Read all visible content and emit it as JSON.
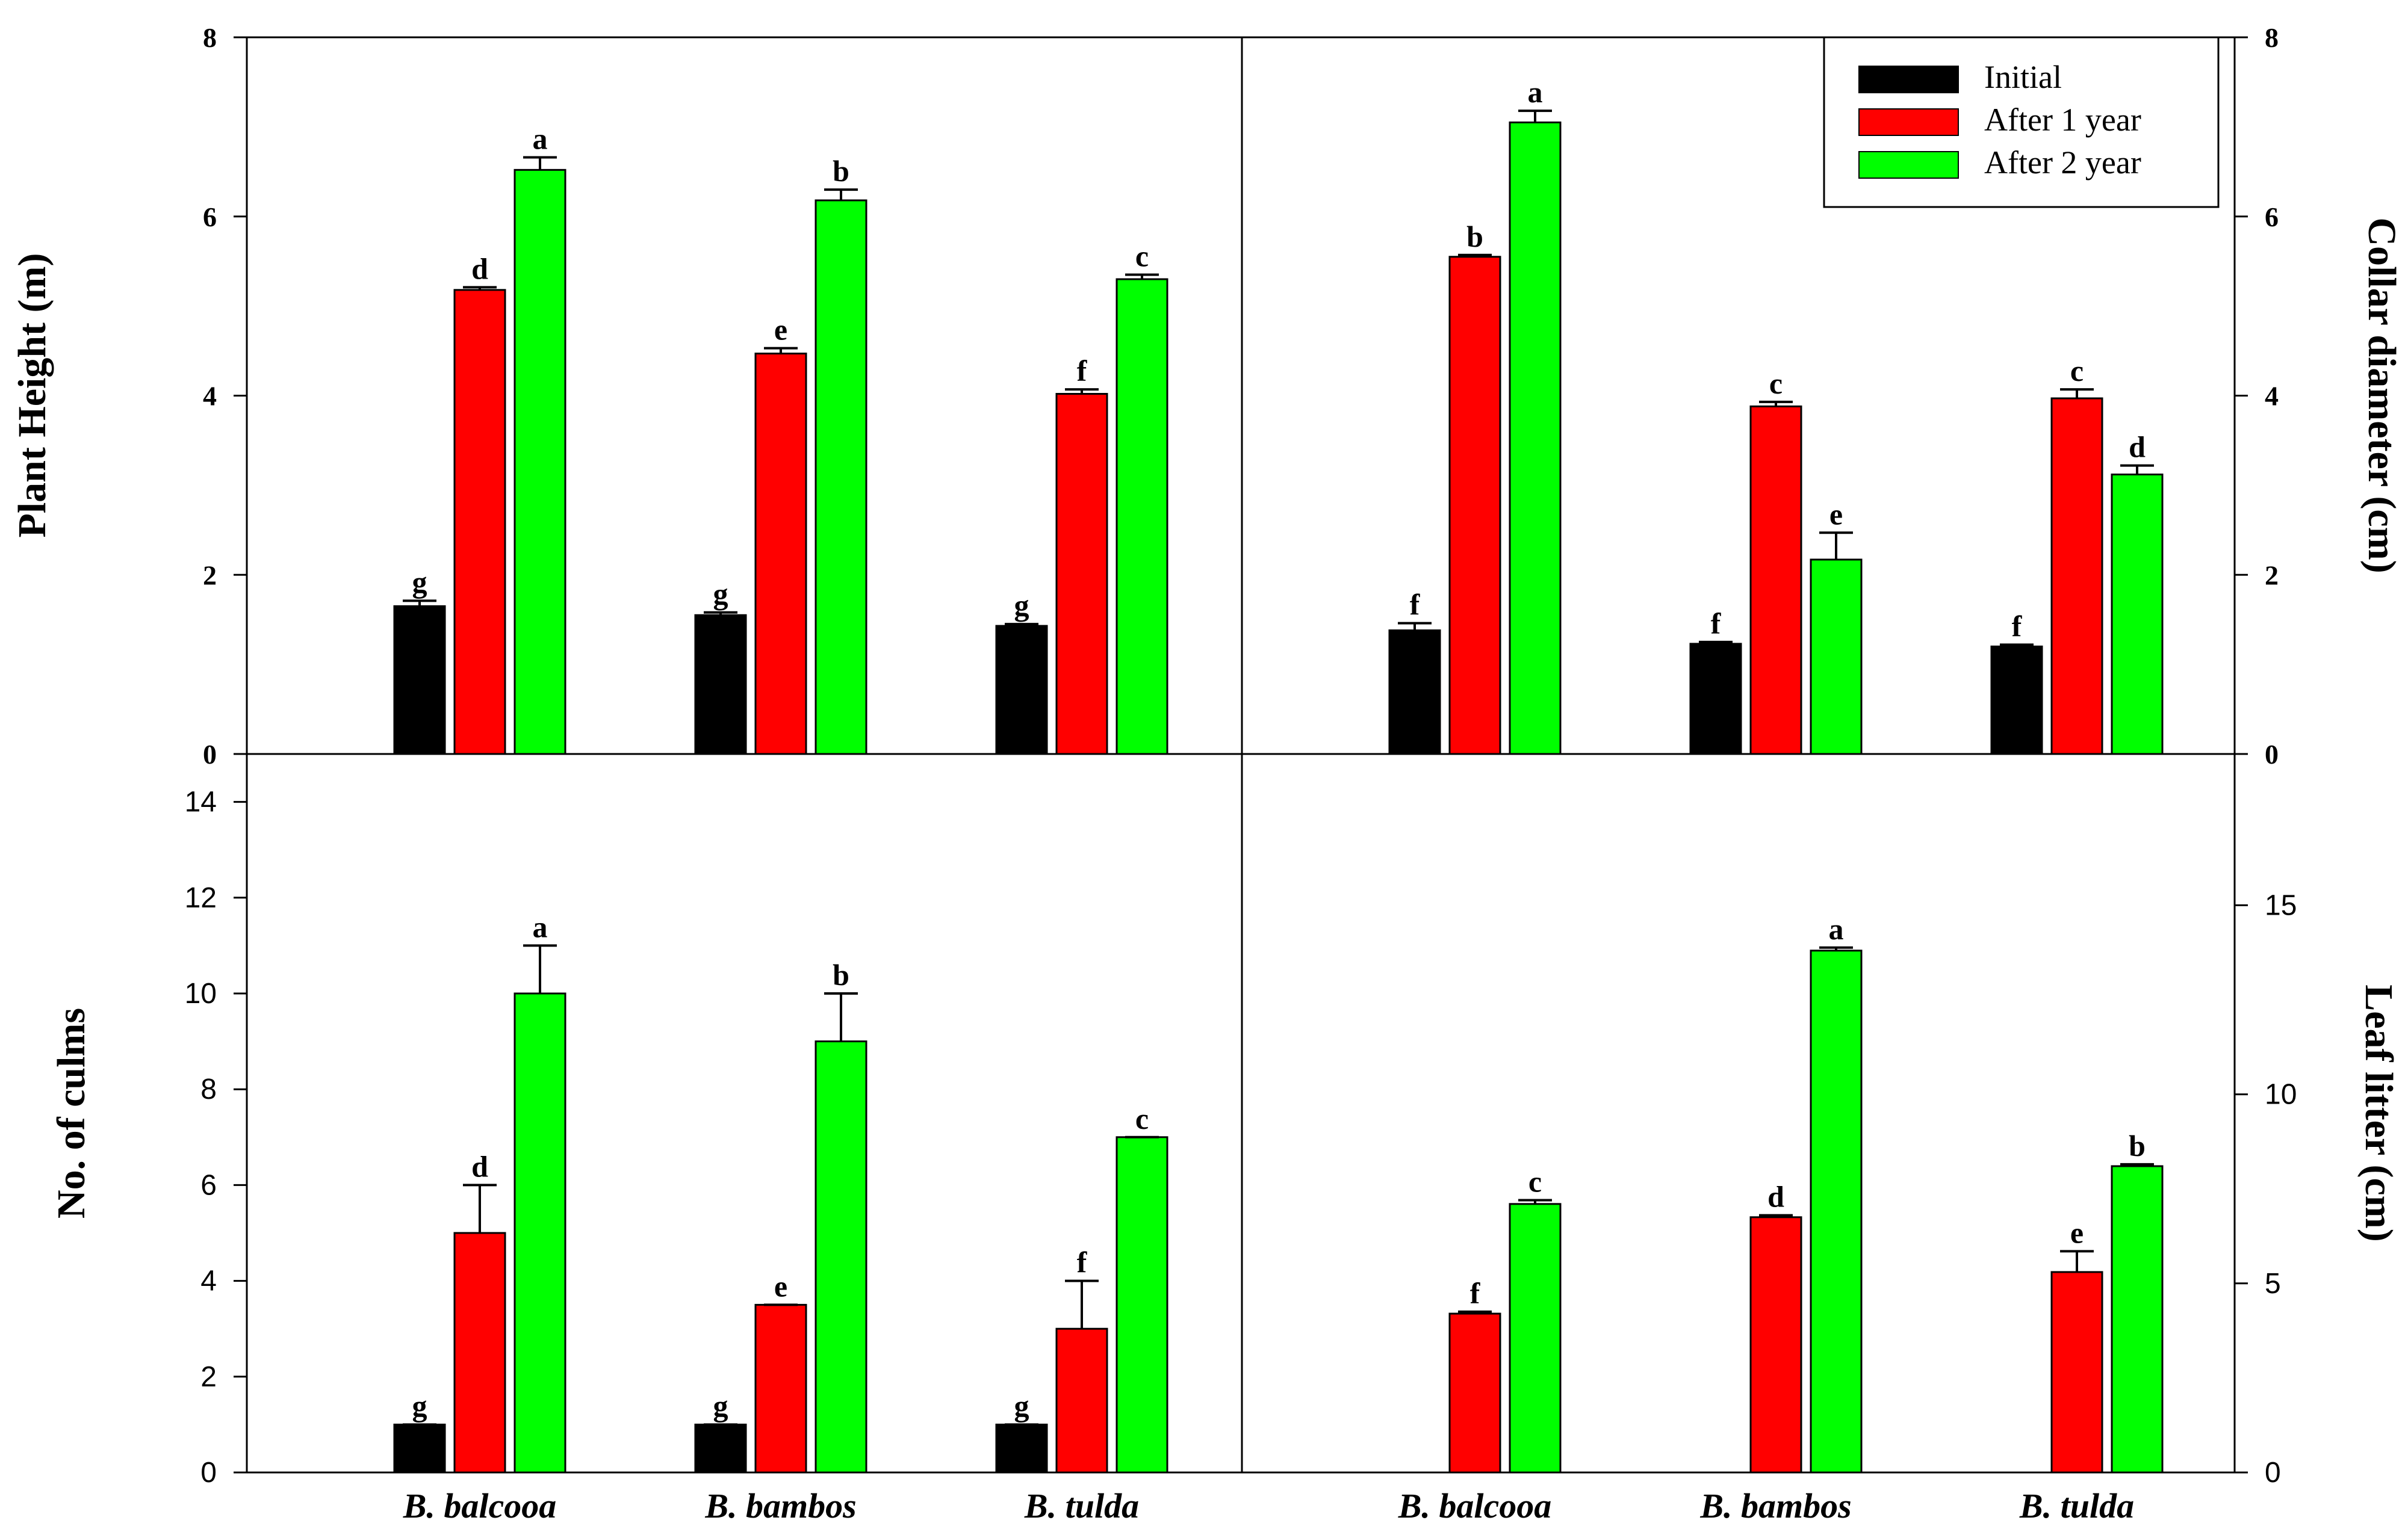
{
  "chart_data": [
    {
      "type": "bar",
      "panel": "top-left",
      "ylabel": "Plant Height (m)",
      "ylim": [
        0,
        8
      ],
      "yticks": [
        "0",
        "2",
        "4",
        "6",
        "8"
      ],
      "categories": [
        "B. balcooa",
        "B. bambos",
        "B. tulda"
      ],
      "series": [
        {
          "name": "Initial",
          "values": [
            1.65,
            1.55,
            1.43
          ],
          "errors": [
            0.06,
            0.03,
            0.02
          ],
          "letters": [
            "g",
            "g",
            "g"
          ]
        },
        {
          "name": "After 1 year",
          "values": [
            5.18,
            4.47,
            4.02
          ],
          "errors": [
            0.03,
            0.06,
            0.05
          ],
          "letters": [
            "d",
            "e",
            "f"
          ]
        },
        {
          "name": "After 2 year",
          "values": [
            6.52,
            6.18,
            5.3
          ],
          "errors": [
            0.14,
            0.12,
            0.05
          ],
          "letters": [
            "a",
            "b",
            "c"
          ]
        }
      ]
    },
    {
      "type": "bar",
      "panel": "top-right",
      "ylabel": "Collar diameter (cm)",
      "ylim": [
        0,
        8
      ],
      "yticks": [
        "0",
        "2",
        "4",
        "6",
        "8"
      ],
      "categories": [
        "B. balcooa",
        "B. bambos",
        "B. tulda"
      ],
      "series": [
        {
          "name": "Initial",
          "values": [
            1.38,
            1.23,
            1.2
          ],
          "errors": [
            0.08,
            0.02,
            0.02
          ],
          "letters": [
            "f",
            "f",
            "f"
          ]
        },
        {
          "name": "After 1 year",
          "values": [
            5.55,
            3.88,
            3.97
          ],
          "errors": [
            0.02,
            0.05,
            0.1
          ],
          "letters": [
            "b",
            "c",
            "c"
          ]
        },
        {
          "name": "After 2 year",
          "values": [
            7.05,
            2.17,
            3.12
          ],
          "errors": [
            0.13,
            0.3,
            0.1
          ],
          "letters": [
            "a",
            "e",
            "d"
          ]
        }
      ]
    },
    {
      "type": "bar",
      "panel": "bottom-left",
      "ylabel": "No. of culms",
      "ylim": [
        0,
        15
      ],
      "yticks": [
        "0",
        "2",
        "4",
        "6",
        "8",
        "10",
        "12",
        "14"
      ],
      "categories": [
        "B. balcooa",
        "B. bambos",
        "B. tulda"
      ],
      "series": [
        {
          "name": "Initial",
          "values": [
            1,
            1,
            1
          ],
          "errors": [
            0,
            0,
            0
          ],
          "letters": [
            "g",
            "g",
            "g"
          ]
        },
        {
          "name": "After 1 year",
          "values": [
            5,
            3.5,
            3
          ],
          "errors": [
            1,
            0,
            1
          ],
          "letters": [
            "d",
            "e",
            "f"
          ]
        },
        {
          "name": "After 2 year",
          "values": [
            10,
            9,
            7
          ],
          "errors": [
            1,
            1,
            0
          ],
          "letters": [
            "a",
            "b",
            "c"
          ]
        }
      ]
    },
    {
      "type": "bar",
      "panel": "bottom-right",
      "ylabel": "Leaf litter (cm)",
      "ylim": [
        0,
        19
      ],
      "yticks": [
        "0",
        "5",
        "10",
        "15"
      ],
      "categories": [
        "B. balcooa",
        "B. bambos",
        "B. tulda"
      ],
      "series": [
        {
          "name": "Initial",
          "values": [
            null,
            null,
            null
          ],
          "errors": [
            0,
            0,
            0
          ],
          "letters": [
            "",
            "",
            ""
          ]
        },
        {
          "name": "After 1 year",
          "values": [
            4.2,
            6.75,
            5.3
          ],
          "errors": [
            0.05,
            0.05,
            0.55
          ],
          "letters": [
            "f",
            "d",
            "e"
          ]
        },
        {
          "name": "After 2 year",
          "values": [
            7.1,
            13.8,
            8.1
          ],
          "errors": [
            0.1,
            0.08,
            0.05
          ],
          "letters": [
            "c",
            "a",
            "b"
          ]
        }
      ]
    }
  ],
  "legend": {
    "position": "top-right",
    "items": [
      {
        "label": "Initial",
        "color": "#000000"
      },
      {
        "label": "After 1 year",
        "color": "#ff0000"
      },
      {
        "label": "After 2 year",
        "color": "#00ff00"
      }
    ]
  },
  "colors": [
    "#000000",
    "#ff0000",
    "#00ff00"
  ]
}
